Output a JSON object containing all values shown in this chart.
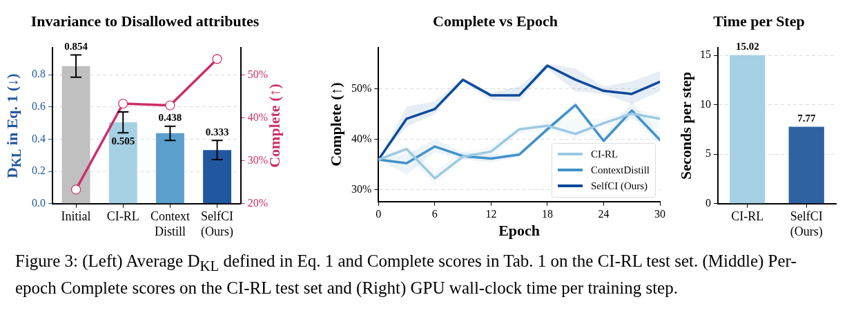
{
  "chart_data": [
    {
      "type": "bar",
      "title": "Invariance to Disallowed attributes",
      "ylabel": "D$_{KL}$ in Eq. 1 (↓)",
      "y2label": "Complete (↑)",
      "categories": [
        "Initial",
        "CI-RL",
        "Context Distill",
        "SelfCI (Ours)"
      ],
      "series": [
        {
          "type": "bar",
          "colors": [
            "#c0c0c0",
            "#a6d0e4",
            "#5aa0cd",
            "#2156a0"
          ],
          "values": [
            0.854,
            0.505,
            0.438,
            0.333
          ],
          "errors": [
            [
              0.785,
              0.923
            ],
            [
              0.44,
              0.57
            ],
            [
              0.393,
              0.481
            ],
            [
              0.274,
              0.393
            ]
          ],
          "value_labels": [
            "0.854",
            "0.505",
            "0.438",
            "0.333"
          ]
        },
        {
          "type": "line",
          "axis": "y2",
          "color": "#cc2e6a",
          "marker": "circle",
          "values": [
            23.3,
            43.3,
            42.9,
            53.7
          ]
        }
      ],
      "ylim": [
        0,
        0.97
      ],
      "yticks": [
        {
          "value": 0,
          "label": "0.0"
        },
        0.2,
        0.4,
        0.6,
        0.8
      ],
      "y2lim": [
        20,
        56.4
      ],
      "y2ticks": [
        {
          "value": 20,
          "label": "20%"
        },
        {
          "value": 30,
          "label": "30%"
        },
        {
          "value": 40,
          "label": "40%"
        },
        {
          "value": 50,
          "label": "50%"
        }
      ],
      "grid": "y",
      "annotations": [
        "Figure 3: (Left) Average D$_{KL}$ defined in Eq. 1 and Complete scores in Tab. 1 on the CI-RL test set. (Middle) Per-epoch Complete scores on the CI-RL test set and (Right) GPU wall-clock time per training step."
      ]
    },
    {
      "type": "line",
      "title": "Complete vs Epoch",
      "xlabel": "Epoch",
      "ylabel": "Complete (↑)",
      "x": [
        0,
        3,
        6,
        9,
        12,
        15,
        18,
        21,
        24,
        27,
        30
      ],
      "series": [
        {
          "name": "CI-RL",
          "color": "#9cc9e2",
          "values": [
            36.0,
            38.1,
            32.3,
            36.6,
            37.6,
            42.0,
            42.7,
            41.1,
            43.2,
            45.1,
            44.1
          ],
          "lower": [
            36,
            37,
            31,
            36,
            36.5,
            41,
            42,
            40,
            42.5,
            44,
            42
          ],
          "upper": [
            36,
            39,
            34,
            37.5,
            38.5,
            42.5,
            43.5,
            44,
            44,
            46,
            45
          ]
        },
        {
          "name": "ContextDistill",
          "color": "#4191c8",
          "values": [
            36.0,
            35.3,
            38.6,
            36.7,
            36.2,
            37.0,
            42.0,
            46.8,
            39.7,
            45.7,
            39.9
          ],
          "lower": [
            36,
            33,
            37.5,
            36,
            35.5,
            36.5,
            41.5,
            46,
            39.5,
            44.5,
            39
          ],
          "upper": [
            36,
            37,
            40,
            37.5,
            37,
            37.5,
            42.5,
            47.5,
            40.5,
            47.5,
            41
          ]
        },
        {
          "name": "SelfCI (Ours)",
          "color": "#0b4a9a",
          "values": [
            36.0,
            44.1,
            46.0,
            51.8,
            48.7,
            48.7,
            54.6,
            51.8,
            49.6,
            49.0,
            51.4
          ],
          "lower": [
            36,
            42.5,
            45,
            51.5,
            47.8,
            47.5,
            54,
            49.5,
            49,
            47,
            49.5
          ],
          "upper": [
            36,
            46.5,
            47.5,
            52.2,
            49.2,
            50.5,
            55,
            54,
            50.5,
            51.5,
            53.5
          ]
        }
      ],
      "xlim": [
        0,
        30
      ],
      "xticks": [
        0,
        6,
        12,
        18,
        24,
        30
      ],
      "ylim": [
        27.7,
        58.2
      ],
      "yticks": [
        {
          "value": 30,
          "label": "30%"
        },
        {
          "value": 40,
          "label": "40%"
        },
        {
          "value": 50,
          "label": "50%"
        }
      ],
      "grid": "y",
      "legend": "bottom right",
      "marker": "none"
    },
    {
      "type": "bar",
      "title": "Time per Step",
      "ylabel": "Seconds per step",
      "categories": [
        "CI-RL",
        "SelfCI (Ours)"
      ],
      "series": [
        {
          "colors": [
            "#a6d0e4",
            "#2e62a1"
          ],
          "values": [
            15.02,
            7.77
          ]
        }
      ],
      "ylim": [
        0,
        15.8
      ],
      "yticks": [
        0,
        5,
        10,
        15
      ],
      "grid": "y",
      "data_labels": true
    }
  ]
}
